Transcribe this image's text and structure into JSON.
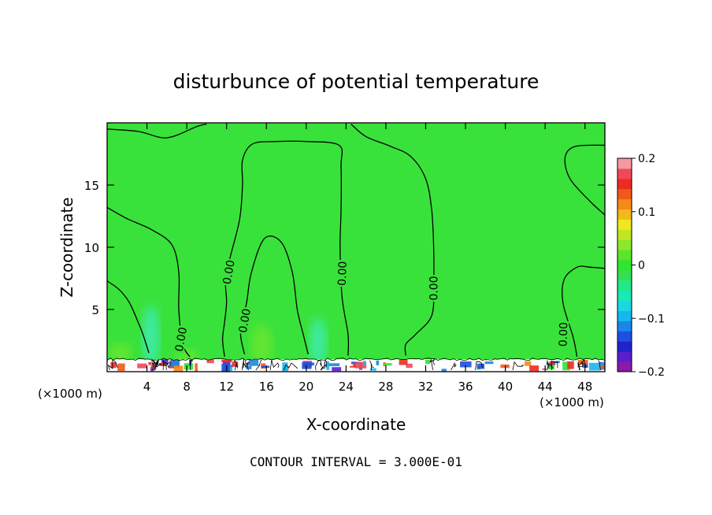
{
  "chart_data": {
    "type": "heatmap",
    "title": "disturbunce of potential temperature",
    "xlabel": "X-coordinate",
    "ylabel": "Z-coordinate",
    "x_unit_left": "(×1000 m)",
    "x_unit_right": "(×1000 m)",
    "xlim": [
      0,
      50
    ],
    "ylim": [
      0,
      20
    ],
    "xticks": [
      4,
      8,
      12,
      16,
      20,
      24,
      28,
      32,
      36,
      40,
      44,
      48
    ],
    "yticks": [
      5,
      10,
      15
    ],
    "footer": "CONTOUR INTERVAL = 3.000E-01",
    "contour_labels": [
      "0.00",
      "0.00",
      "0.00",
      "0.00",
      "0.00",
      "0.00"
    ],
    "colorbar": {
      "min": -0.2,
      "max": 0.2,
      "tick_values": [
        0.2,
        0.1,
        0,
        -0.1,
        -0.2
      ],
      "tick_labels": [
        "0.2",
        "0.1",
        "0",
        "−0.1",
        "−0.2"
      ],
      "colors": [
        "#8b1aa8",
        "#5a1ecc",
        "#2222cc",
        "#1f4fe0",
        "#1a86e8",
        "#16b6f0",
        "#19d8e0",
        "#19e8b8",
        "#22e888",
        "#33e055",
        "#2ee62e",
        "#5ae62a",
        "#8ee82a",
        "#c0e625",
        "#f0e81e",
        "#f5b81a",
        "#f58a18",
        "#f05a18",
        "#ee2a22",
        "#f0485a",
        "#f59aa0"
      ]
    },
    "field": {
      "background_color": "#39e23a",
      "cool_plumes": [
        {
          "x": 4.4,
          "ztop": 5.6,
          "color": "#3ceaa0"
        },
        {
          "x": 21.2,
          "ztop": 4.6,
          "color": "#3ceaa0"
        }
      ],
      "warm_patches": [
        {
          "x": 1.3,
          "ztop": 2.3,
          "color": "#6be632"
        },
        {
          "x": 15.5,
          "ztop": 3.8,
          "color": "#6be632"
        },
        {
          "x": 8.0,
          "ztop": 1.8,
          "color": "#6be632"
        }
      ],
      "contours": [
        {
          "name": "contour-upper-left",
          "points": [
            [
              0,
              19.5
            ],
            [
              3.2,
              19.3
            ],
            [
              6,
              18.8
            ],
            [
              9,
              19.7
            ],
            [
              10,
              19.9
            ]
          ]
        },
        {
          "name": "contour-left-plume",
          "points": [
            [
              0,
              13.2
            ],
            [
              2,
              12.3
            ],
            [
              4.5,
              11.4
            ],
            [
              6.5,
              10.2
            ],
            [
              7.2,
              8
            ],
            [
              7.2,
              5
            ],
            [
              7.6,
              2.2
            ],
            [
              8.3,
              1.2
            ]
          ]
        },
        {
          "name": "contour-left-bottom",
          "points": [
            [
              0,
              7.3
            ],
            [
              1.2,
              6.6
            ],
            [
              2.2,
              5.6
            ],
            [
              3,
              4.2
            ],
            [
              3.6,
              3
            ],
            [
              4.2,
              1.5
            ]
          ]
        },
        {
          "name": "contour-central-loop",
          "points": [
            [
              11.8,
              1.2
            ],
            [
              11.6,
              2.6
            ],
            [
              11.8,
              4
            ],
            [
              12,
              5.6
            ],
            [
              11.9,
              7.2
            ],
            [
              12.3,
              9
            ],
            [
              13.3,
              12.2
            ],
            [
              13.6,
              15
            ],
            [
              13.6,
              17
            ],
            [
              14.6,
              18.3
            ],
            [
              17,
              18.5
            ],
            [
              20,
              18.5
            ],
            [
              23.3,
              18.2
            ],
            [
              23.5,
              16.5
            ],
            [
              23.5,
              13
            ],
            [
              23.4,
              10
            ],
            [
              23.6,
              6
            ],
            [
              24.2,
              3
            ],
            [
              24.2,
              1.3
            ]
          ]
        },
        {
          "name": "contour-inner-tongue",
          "points": [
            [
              13.8,
              1.4
            ],
            [
              13.4,
              3.2
            ],
            [
              14,
              5.5
            ],
            [
              14.5,
              8
            ],
            [
              15.8,
              10.7
            ],
            [
              17.5,
              10.4
            ],
            [
              18.6,
              8
            ],
            [
              19.1,
              5
            ],
            [
              19.7,
              3
            ],
            [
              20.2,
              1.4
            ]
          ]
        },
        {
          "name": "contour-right-arch",
          "points": [
            [
              24.5,
              19.9
            ],
            [
              26,
              18.9
            ],
            [
              28.5,
              18.1
            ],
            [
              30.5,
              17.3
            ],
            [
              32,
              15.5
            ],
            [
              32.6,
              13
            ],
            [
              32.8,
              10
            ],
            [
              32.8,
              7
            ],
            [
              32.6,
              4.5
            ],
            [
              31,
              3
            ],
            [
              30,
              2.2
            ],
            [
              30,
              1.3
            ]
          ]
        },
        {
          "name": "contour-right-edge-bump",
          "points": [
            [
              50,
              12.6
            ],
            [
              48.5,
              13.7
            ],
            [
              46.5,
              15.5
            ],
            [
              46,
              17.2
            ],
            [
              47,
              18.1
            ],
            [
              50,
              18.2
            ]
          ]
        },
        {
          "name": "contour-right-lower",
          "points": [
            [
              47.2,
              1.2
            ],
            [
              46.8,
              2.8
            ],
            [
              45.8,
              5.5
            ],
            [
              45.9,
              7.4
            ],
            [
              47.2,
              8.4
            ],
            [
              48.5,
              8.4
            ],
            [
              50,
              8.3
            ]
          ]
        }
      ],
      "label_positions": [
        {
          "x": 7.4,
          "z": 2.6,
          "angle": -80
        },
        {
          "x": 12.2,
          "z": 8.0,
          "angle": -80
        },
        {
          "x": 13.8,
          "z": 4.1,
          "angle": -80
        },
        {
          "x": 23.6,
          "z": 7.9,
          "angle": -88
        },
        {
          "x": 32.8,
          "z": 6.7,
          "angle": -90
        },
        {
          "x": 45.8,
          "z": 3.0,
          "angle": -88
        }
      ]
    }
  }
}
